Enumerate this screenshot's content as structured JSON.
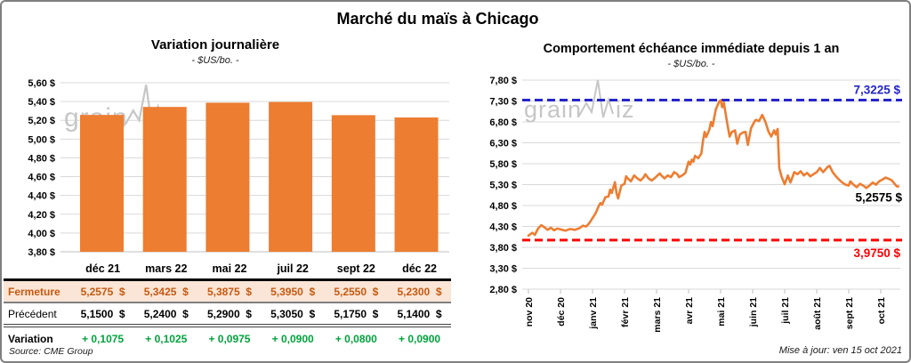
{
  "title": "Marché du maïs à Chicago",
  "watermark": {
    "part1": "grain",
    "part2": "iz",
    "color": "#c6c6c6"
  },
  "colors": {
    "accent_orange": "#ED7D31",
    "gridline": "#D9D9D9",
    "close_row_bg": "#FBE5D6",
    "close_row_text": "#C55A11",
    "variation_green": "#00A33C",
    "resistance_blue": "#2525CC",
    "support_red": "#FF0000"
  },
  "footer": {
    "source": "Source: CME Group",
    "updated": "Mise à jour: ven 15 oct 2021"
  },
  "table": {
    "col_headers": [
      "",
      "déc 21",
      "mars 22",
      "mai 22",
      "juil 22",
      "sept 22",
      "déc 22"
    ],
    "rows": [
      {
        "name": "fermeture",
        "label": "Fermeture",
        "values": [
          "5,2575  $",
          "5,3425  $",
          "5,3875  $",
          "5,3950  $",
          "5,2550  $",
          "5,2300  $"
        ]
      },
      {
        "name": "precedent",
        "label": "Précédent",
        "values": [
          "5,1500  $",
          "5,2400  $",
          "5,2900  $",
          "5,3050  $",
          "5,1750  $",
          "5,1400  $"
        ]
      },
      {
        "name": "variation",
        "label": "Variation",
        "values": [
          "+ 0,1075",
          "+ 0,1025",
          "+ 0,0975",
          "+ 0,0900",
          "+ 0,0800",
          "+ 0,0900"
        ]
      }
    ]
  },
  "chart_data": [
    {
      "type": "bar",
      "title": "Variation  journalière",
      "subtitle": "- $US/bo. -",
      "categories": [
        "déc 21",
        "mars 22",
        "mai 22",
        "juil 22",
        "sept 22",
        "déc 22"
      ],
      "values": [
        5.2575,
        5.3425,
        5.3875,
        5.395,
        5.255,
        5.23
      ],
      "ylim": [
        3.8,
        5.6
      ],
      "y_tick_step": 0.2,
      "y_tick_labels": [
        "3,80 $",
        "4,00 $",
        "4,20 $",
        "4,40 $",
        "4,60 $",
        "4,80 $",
        "5,00 $",
        "5,20 $",
        "5,40 $",
        "5,60 $"
      ],
      "grid": true,
      "legend": "none"
    },
    {
      "type": "line",
      "title": "Comportement  échéance  immédiate  depuis 1 an",
      "subtitle": "- $US/bo. -",
      "x_tick_labels": [
        "nov 20",
        "déc 20",
        "janv 21",
        "févr 21",
        "mars 21",
        "avr 21",
        "mai 21",
        "juin 21",
        "juil 21",
        "août 21",
        "sept 21",
        "oct 21"
      ],
      "ylim": [
        2.8,
        7.8
      ],
      "y_tick_step": 0.5,
      "y_tick_labels": [
        "2,80 $",
        "3,30 $",
        "3,80 $",
        "4,30 $",
        "4,80 $",
        "5,30 $",
        "5,80 $",
        "6,30 $",
        "6,80 $",
        "7,30 $",
        "7,80 $"
      ],
      "grid": true,
      "legend": "none",
      "resistance": {
        "value": 7.3225,
        "label": "7,3225 $"
      },
      "support": {
        "value": 3.975,
        "label": "3,9750 $"
      },
      "last_point": {
        "value": 5.2575,
        "label": "5,2575 $"
      },
      "points": [
        [
          0,
          4.08
        ],
        [
          0.12,
          4.15
        ],
        [
          0.2,
          4.1
        ],
        [
          0.3,
          4.25
        ],
        [
          0.4,
          4.33
        ],
        [
          0.5,
          4.28
        ],
        [
          0.6,
          4.22
        ],
        [
          0.7,
          4.27
        ],
        [
          0.8,
          4.21
        ],
        [
          0.9,
          4.25
        ],
        [
          1.0,
          4.23
        ],
        [
          1.15,
          4.2
        ],
        [
          1.3,
          4.24
        ],
        [
          1.45,
          4.22
        ],
        [
          1.6,
          4.26
        ],
        [
          1.7,
          4.32
        ],
        [
          1.8,
          4.3
        ],
        [
          1.9,
          4.38
        ],
        [
          2.0,
          4.5
        ],
        [
          2.1,
          4.62
        ],
        [
          2.2,
          4.8
        ],
        [
          2.25,
          4.86
        ],
        [
          2.3,
          4.82
        ],
        [
          2.4,
          5.0
        ],
        [
          2.5,
          5.02
        ],
        [
          2.55,
          5.18
        ],
        [
          2.6,
          5.1
        ],
        [
          2.7,
          5.36
        ],
        [
          2.75,
          5.1
        ],
        [
          2.8,
          4.97
        ],
        [
          2.9,
          5.28
        ],
        [
          3.0,
          5.32
        ],
        [
          3.05,
          5.5
        ],
        [
          3.1,
          5.45
        ],
        [
          3.2,
          5.38
        ],
        [
          3.3,
          5.52
        ],
        [
          3.4,
          5.45
        ],
        [
          3.5,
          5.4
        ],
        [
          3.6,
          5.48
        ],
        [
          3.65,
          5.55
        ],
        [
          3.75,
          5.45
        ],
        [
          3.85,
          5.4
        ],
        [
          3.95,
          5.46
        ],
        [
          4.0,
          5.5
        ],
        [
          4.1,
          5.57
        ],
        [
          4.15,
          5.52
        ],
        [
          4.25,
          5.45
        ],
        [
          4.35,
          5.52
        ],
        [
          4.45,
          5.48
        ],
        [
          4.55,
          5.6
        ],
        [
          4.65,
          5.55
        ],
        [
          4.7,
          5.48
        ],
        [
          4.8,
          5.52
        ],
        [
          4.9,
          5.58
        ],
        [
          5.0,
          5.85
        ],
        [
          5.05,
          5.78
        ],
        [
          5.1,
          5.9
        ],
        [
          5.15,
          5.85
        ],
        [
          5.2,
          5.99
        ],
        [
          5.3,
          5.93
        ],
        [
          5.4,
          6.05
        ],
        [
          5.45,
          6.35
        ],
        [
          5.5,
          6.56
        ],
        [
          5.55,
          6.44
        ],
        [
          5.65,
          6.62
        ],
        [
          5.7,
          6.8
        ],
        [
          5.75,
          6.7
        ],
        [
          5.85,
          7.1
        ],
        [
          5.95,
          7.28
        ],
        [
          6.0,
          7.32
        ],
        [
          6.05,
          7.15
        ],
        [
          6.1,
          7.26
        ],
        [
          6.2,
          6.8
        ],
        [
          6.28,
          6.45
        ],
        [
          6.35,
          6.56
        ],
        [
          6.45,
          6.6
        ],
        [
          6.52,
          6.28
        ],
        [
          6.6,
          6.5
        ],
        [
          6.7,
          6.55
        ],
        [
          6.78,
          6.56
        ],
        [
          6.85,
          6.25
        ],
        [
          6.95,
          6.65
        ],
        [
          7.05,
          6.8
        ],
        [
          7.1,
          6.85
        ],
        [
          7.2,
          6.82
        ],
        [
          7.3,
          6.97
        ],
        [
          7.4,
          6.8
        ],
        [
          7.5,
          6.56
        ],
        [
          7.58,
          6.45
        ],
        [
          7.67,
          6.6
        ],
        [
          7.72,
          6.5
        ],
        [
          7.78,
          6.63
        ],
        [
          7.83,
          5.7
        ],
        [
          7.9,
          5.5
        ],
        [
          8.0,
          5.31
        ],
        [
          8.1,
          5.52
        ],
        [
          8.18,
          5.35
        ],
        [
          8.3,
          5.6
        ],
        [
          8.4,
          5.55
        ],
        [
          8.5,
          5.62
        ],
        [
          8.6,
          5.52
        ],
        [
          8.7,
          5.58
        ],
        [
          8.8,
          5.5
        ],
        [
          8.9,
          5.55
        ],
        [
          9.0,
          5.6
        ],
        [
          9.1,
          5.7
        ],
        [
          9.2,
          5.6
        ],
        [
          9.35,
          5.73
        ],
        [
          9.4,
          5.75
        ],
        [
          9.5,
          5.6
        ],
        [
          9.6,
          5.5
        ],
        [
          9.7,
          5.42
        ],
        [
          9.8,
          5.35
        ],
        [
          9.9,
          5.3
        ],
        [
          10.0,
          5.28
        ],
        [
          10.05,
          5.38
        ],
        [
          10.15,
          5.3
        ],
        [
          10.25,
          5.24
        ],
        [
          10.35,
          5.32
        ],
        [
          10.45,
          5.28
        ],
        [
          10.55,
          5.22
        ],
        [
          10.65,
          5.28
        ],
        [
          10.75,
          5.35
        ],
        [
          10.85,
          5.3
        ],
        [
          10.95,
          5.38
        ],
        [
          11.05,
          5.42
        ],
        [
          11.15,
          5.47
        ],
        [
          11.25,
          5.44
        ],
        [
          11.35,
          5.4
        ],
        [
          11.42,
          5.33
        ],
        [
          11.5,
          5.26
        ],
        [
          11.55,
          5.2575
        ]
      ]
    }
  ]
}
